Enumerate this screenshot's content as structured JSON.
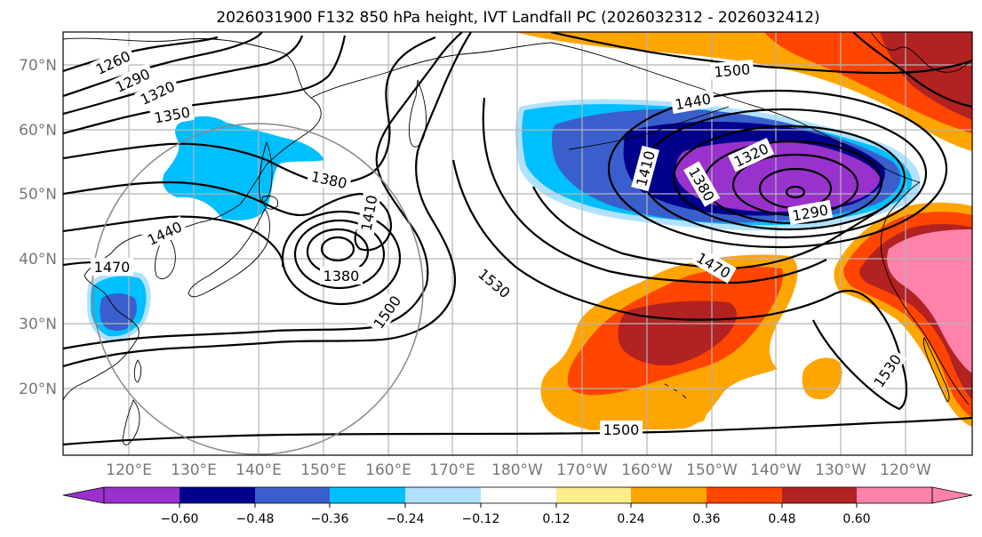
{
  "title": "2026031900 F132 850 hPa height, IVT Landfall PC (2026032312 - 2026032412)",
  "axes": {
    "lat_labels": [
      "20°N",
      "30°N",
      "40°N",
      "50°N",
      "60°N",
      "70°N"
    ],
    "lon_labels": [
      "120°E",
      "130°E",
      "140°E",
      "150°E",
      "160°E",
      "170°E",
      "180°W",
      "170°W",
      "160°W",
      "150°W",
      "140°W",
      "130°W",
      "120°W"
    ]
  },
  "contour_labels": [
    "1260",
    "1290",
    "1320",
    "1350",
    "1380",
    "1410",
    "1440",
    "1470",
    "1380",
    "1500",
    "1530",
    "1500",
    "1440",
    "1410",
    "1380",
    "1320",
    "1290",
    "1470",
    "1530",
    "1500"
  ],
  "colorbar": {
    "colors": [
      "#9932cc",
      "#00008b",
      "#3a5fcd",
      "#00bfff",
      "#b0e2ff",
      "#ffffff",
      "#ffec8b",
      "#ffa500",
      "#ff4500",
      "#b22222",
      "#ff82ab"
    ],
    "ticks": [
      "−0.60",
      "−0.48",
      "−0.36",
      "−0.24",
      "−0.12",
      "0.12",
      "0.24",
      "0.36",
      "0.48",
      "0.60"
    ]
  },
  "legend_colors": {
    "purple": "#9932cc",
    "navy": "#00008b",
    "blue": "#3a5fcd",
    "sky": "#00bfff",
    "light": "#b0e2ff",
    "gold": "#ffec8b",
    "orange": "#ffa500",
    "red": "#ff4500",
    "firebrick": "#b22222",
    "pink": "#ff82ab"
  }
}
